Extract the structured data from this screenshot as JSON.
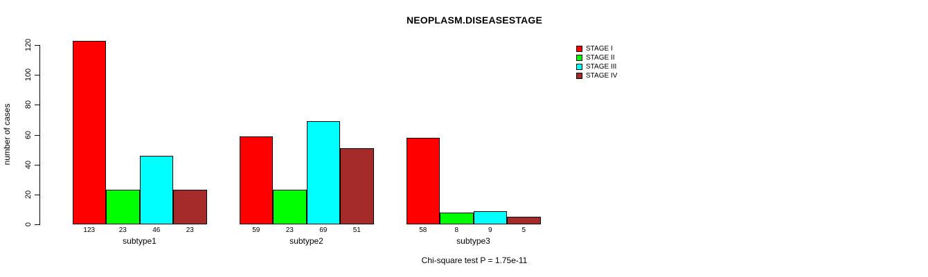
{
  "title": "NEOPLASM.DISEASESTAGE",
  "chart_data": {
    "type": "bar",
    "title": "NEOPLASM.DISEASESTAGE",
    "categories": [
      "subtype1",
      "subtype2",
      "subtype3"
    ],
    "series": [
      {
        "name": "STAGE I",
        "color": "#ff0000",
        "values": [
          123,
          59,
          58
        ]
      },
      {
        "name": "STAGE II",
        "color": "#00ff00",
        "values": [
          23,
          23,
          8
        ]
      },
      {
        "name": "STAGE III",
        "color": "#00ffff",
        "values": [
          46,
          69,
          9
        ]
      },
      {
        "name": "STAGE IV",
        "color": "#a52a2a",
        "values": [
          23,
          51,
          5
        ]
      }
    ],
    "xlabel": "",
    "ylabel": "number of cases",
    "ylim": [
      0,
      120
    ],
    "yticks": [
      0,
      20,
      40,
      60,
      80,
      100,
      120
    ],
    "grid": false,
    "bar_borders": true,
    "bar_value_labels_shown": true,
    "legend_position": "right",
    "legend_entries": [
      "STAGE I",
      "STAGE II",
      "STAGE III",
      "STAGE IV"
    ],
    "annotation": "Chi-square test P = 1.75e-11"
  }
}
